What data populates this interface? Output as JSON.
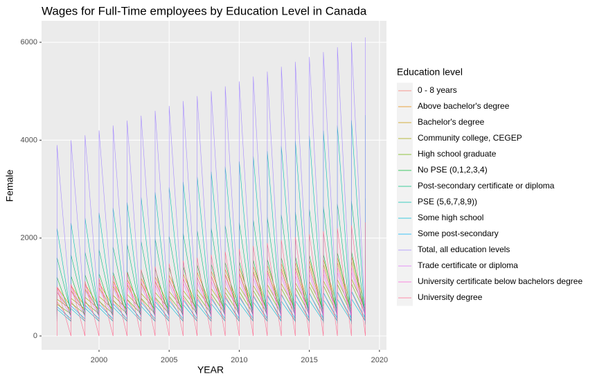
{
  "chart_data": {
    "type": "line",
    "title": "Wages for Full-Time employees by Education Level in Canada",
    "x_label": "YEAR",
    "y_label": "Female",
    "legend_title": "Education level",
    "xlim": [
      1995.9,
      2020.5
    ],
    "xticks": [
      2000,
      2005,
      2010,
      2015,
      2020
    ],
    "ylim": [
      -283,
      6439
    ],
    "yticks": [
      0,
      2000,
      4000,
      6000
    ],
    "grid": true,
    "legend": "right",
    "x": [
      1997,
      1997,
      1998,
      1998,
      1999,
      1999,
      2000,
      2000,
      2001,
      2001,
      2002,
      2002,
      2003,
      2003,
      2004,
      2004,
      2005,
      2005,
      2006,
      2006,
      2007,
      2007,
      2008,
      2008,
      2009,
      2009,
      2010,
      2010,
      2011,
      2011,
      2012,
      2012,
      2013,
      2013,
      2014,
      2014,
      2015,
      2015,
      2016,
      2016,
      2017,
      2017,
      2018,
      2018,
      2019,
      2019
    ],
    "series": [
      {
        "name": "0 - 8  years",
        "color": "#F8766D",
        "values": [
          300,
          700,
          300,
          710,
          300,
          720,
          300,
          730,
          300,
          740,
          300,
          750,
          300,
          760,
          300,
          770,
          300,
          780,
          300,
          790,
          300,
          800,
          300,
          810,
          300,
          820,
          300,
          830,
          300,
          840,
          300,
          850,
          300,
          860,
          300,
          870,
          300,
          880,
          300,
          890,
          300,
          900,
          300,
          910,
          300,
          920
        ]
      },
      {
        "name": "Above bachelor's degree",
        "color": "#E58700",
        "values": [
          600,
          1000,
          600,
          1030,
          600,
          1060,
          600,
          1090,
          600,
          1120,
          600,
          1150,
          600,
          1180,
          600,
          1210,
          600,
          1240,
          600,
          1270,
          600,
          1300,
          600,
          1330,
          600,
          1360,
          600,
          1390,
          600,
          1420,
          600,
          1450,
          600,
          1480,
          600,
          1510,
          600,
          1540,
          600,
          1570,
          600,
          1600,
          600,
          1630,
          600,
          1660
        ]
      },
      {
        "name": "Bachelor's degree",
        "color": "#C99800",
        "values": [
          500,
          900,
          500,
          930,
          500,
          960,
          500,
          990,
          500,
          1020,
          500,
          1050,
          500,
          1080,
          500,
          1110,
          500,
          1140,
          500,
          1170,
          500,
          1200,
          500,
          1230,
          500,
          1260,
          500,
          1290,
          500,
          1320,
          500,
          1350,
          500,
          1380,
          500,
          1410,
          500,
          1440,
          500,
          1470,
          500,
          1500,
          500,
          1530,
          500,
          1560
        ]
      },
      {
        "name": "Community college, CEGEP",
        "color": "#A3A500",
        "values": [
          550,
          750,
          550,
          770,
          550,
          790,
          550,
          810,
          550,
          830,
          550,
          850,
          550,
          870,
          550,
          890,
          550,
          910,
          550,
          930,
          550,
          950,
          550,
          970,
          550,
          990,
          550,
          1010,
          550,
          1030,
          550,
          1050,
          550,
          1070,
          550,
          1090,
          550,
          1110,
          550,
          1130,
          550,
          1150,
          550,
          1170,
          550,
          1190
        ]
      },
      {
        "name": "High school graduate",
        "color": "#6BB100",
        "values": [
          450,
          650,
          450,
          670,
          450,
          690,
          450,
          710,
          450,
          730,
          450,
          750,
          450,
          770,
          450,
          790,
          450,
          810,
          450,
          830,
          450,
          850,
          450,
          870,
          450,
          890,
          450,
          910,
          450,
          930,
          450,
          950,
          450,
          970,
          450,
          990,
          450,
          1010,
          450,
          1030,
          450,
          1050,
          450,
          1070,
          450,
          1090
        ]
      },
      {
        "name": "No PSE  (0,1,2,3,4)",
        "color": "#00BA38",
        "values": [
          400,
          1200,
          400,
          1225,
          400,
          1250,
          400,
          1275,
          400,
          1300,
          400,
          1325,
          400,
          1350,
          400,
          1375,
          400,
          1400,
          400,
          1425,
          400,
          1450,
          400,
          1475,
          400,
          1500,
          400,
          1525,
          400,
          1550,
          400,
          1575,
          400,
          1600,
          400,
          1625,
          400,
          1650,
          400,
          1675,
          400,
          1700,
          400,
          1725,
          400,
          1750
        ]
      },
      {
        "name": "Post-secondary certificate or diploma",
        "color": "#00BF7D",
        "values": [
          500,
          1600,
          490,
          1655,
          480,
          1710,
          470,
          1765,
          460,
          1820,
          450,
          1875,
          440,
          1930,
          430,
          1985,
          420,
          2040,
          410,
          2095,
          400,
          2150,
          390,
          2205,
          380,
          2260,
          370,
          2315,
          360,
          2370,
          350,
          2425,
          340,
          2480,
          330,
          2535,
          320,
          2590,
          310,
          2645,
          300,
          2700,
          290,
          2755,
          280,
          2810
        ]
      },
      {
        "name": "PSE  (5,6,7,8,9))",
        "color": "#00C0AF",
        "values": [
          450,
          2200,
          440,
          2305,
          430,
          2410,
          420,
          2515,
          410,
          2620,
          400,
          2725,
          390,
          2830,
          380,
          2935,
          370,
          3040,
          360,
          3145,
          350,
          3250,
          340,
          3355,
          330,
          3460,
          320,
          3565,
          310,
          3670,
          300,
          3775,
          290,
          3880,
          280,
          3985,
          270,
          4090,
          260,
          4195,
          250,
          4300,
          240,
          4405,
          230,
          4510
        ]
      },
      {
        "name": "Some high school",
        "color": "#00BCD8",
        "values": [
          300,
          550,
          300,
          560,
          300,
          570,
          300,
          580,
          300,
          590,
          300,
          600,
          300,
          610,
          300,
          620,
          300,
          630,
          300,
          640,
          300,
          650,
          300,
          660,
          300,
          670,
          300,
          680,
          300,
          690,
          300,
          700,
          300,
          710,
          300,
          720,
          300,
          730,
          300,
          740,
          300,
          750,
          300,
          760,
          300,
          770
        ]
      },
      {
        "name": "Some post-secondary",
        "color": "#00B0F6",
        "values": [
          350,
          600,
          350,
          615,
          350,
          630,
          350,
          645,
          350,
          660,
          350,
          675,
          350,
          690,
          350,
          705,
          350,
          720,
          350,
          735,
          350,
          750,
          350,
          765,
          350,
          780,
          350,
          795,
          350,
          810,
          350,
          825,
          350,
          840,
          350,
          855,
          350,
          870,
          350,
          885,
          350,
          900,
          350,
          915,
          350,
          930
        ]
      },
      {
        "name": "Total, all education levels",
        "color": "#A58AFF",
        "values": [
          500,
          3900,
          490,
          4000,
          480,
          4100,
          470,
          4200,
          460,
          4300,
          450,
          4400,
          440,
          4500,
          430,
          4600,
          420,
          4700,
          410,
          4800,
          400,
          4900,
          390,
          5000,
          380,
          5100,
          370,
          5200,
          360,
          5300,
          350,
          5400,
          340,
          5500,
          330,
          5600,
          320,
          5700,
          310,
          5800,
          300,
          5900,
          290,
          6000,
          280,
          6100
        ]
      },
      {
        "name": "Trade certificate or diploma",
        "color": "#DF70F8",
        "values": [
          400,
          900,
          400,
          920,
          400,
          940,
          400,
          960,
          400,
          980,
          400,
          1000,
          400,
          1020,
          400,
          1040,
          400,
          1060,
          400,
          1080,
          400,
          1100,
          400,
          1120,
          400,
          1140,
          400,
          1160,
          400,
          1180,
          400,
          1200,
          400,
          1220,
          400,
          1240,
          400,
          1260,
          400,
          1280,
          400,
          1300,
          400,
          1320,
          400,
          1340
        ]
      },
      {
        "name": "University certificate below bachelors degree",
        "color": "#FB61D7",
        "values": [
          450,
          1000,
          450,
          1020,
          450,
          1040,
          450,
          1060,
          450,
          1080,
          450,
          1100,
          450,
          1120,
          450,
          1140,
          450,
          1160,
          450,
          1180,
          450,
          1200,
          450,
          1220,
          450,
          1240,
          450,
          1260,
          450,
          1280,
          450,
          1300,
          450,
          1320,
          450,
          1340,
          450,
          1360,
          450,
          1380,
          450,
          1400,
          450,
          1420,
          450,
          1440
        ]
      },
      {
        "name": "University degree",
        "color": "#FF6C91",
        "values": [
          0,
          1000,
          0,
          1060,
          0,
          1120,
          0,
          1180,
          0,
          1240,
          0,
          1300,
          0,
          1360,
          0,
          1420,
          0,
          1480,
          0,
          1540,
          0,
          1600,
          0,
          1660,
          0,
          1720,
          0,
          1780,
          0,
          1840,
          0,
          1900,
          0,
          1960,
          0,
          2020,
          0,
          2080,
          0,
          2140,
          0,
          2200,
          0,
          2260,
          0,
          2320
        ]
      }
    ]
  }
}
